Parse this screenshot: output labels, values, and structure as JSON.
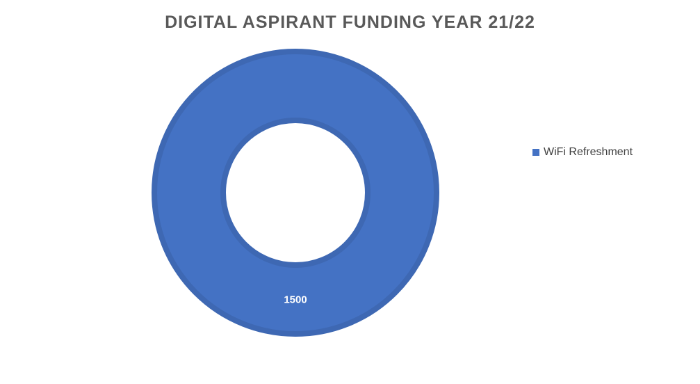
{
  "chart_data": {
    "type": "pie",
    "title": "DIGITAL ASPIRANT FUNDING YEAR 21/22",
    "style": "donut",
    "legend_position": "right",
    "series": [
      {
        "name": "WiFi Refreshment",
        "value": 1500,
        "label": "1500",
        "color": "#4472C4"
      }
    ]
  }
}
